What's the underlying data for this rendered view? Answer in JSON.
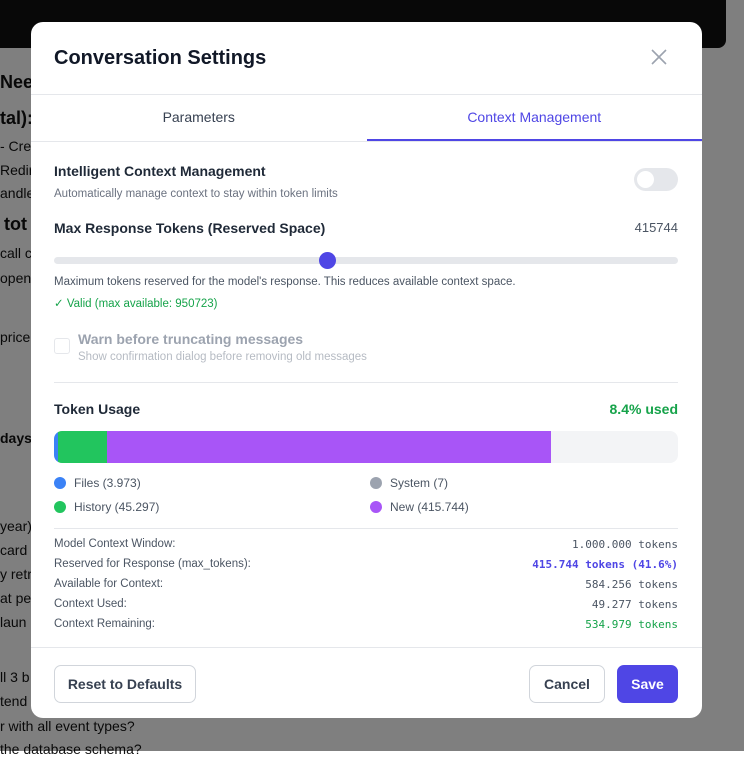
{
  "background": {
    "fragments": [
      "Nee",
      "tal):",
      "- Cre",
      "Redire",
      "andle",
      "tot",
      "call cr",
      "open",
      "price",
      "days",
      "year)",
      "card",
      "y retr",
      "at pe",
      "laun",
      "ll 3 b",
      "tend",
      "r with all event types?",
      "the database schema?"
    ]
  },
  "modal": {
    "title": "Conversation Settings",
    "tabs": [
      {
        "label": "Parameters",
        "active": false
      },
      {
        "label": "Context Management",
        "active": true
      }
    ],
    "intelligent": {
      "label": "Intelligent Context Management",
      "description": "Automatically manage context to stay within token limits",
      "enabled": false
    },
    "max_tokens": {
      "label": "Max Response Tokens (Reserved Space)",
      "value": "415744",
      "slider_value": 415744,
      "slider_max": 950723,
      "help": "Maximum tokens reserved for the model's response. This reduces available context space.",
      "valid": "✓ Valid (max available: 950723)"
    },
    "warn": {
      "label": "Warn before truncating messages",
      "description": "Show confirmation dialog before removing old messages",
      "checked": false,
      "disabled": true
    },
    "usage": {
      "title": "Token Usage",
      "percent_used": "8.4% used",
      "capacity": 584256,
      "segments": [
        {
          "key": "files",
          "value": 3973,
          "color": "#3b82f6"
        },
        {
          "key": "system",
          "value": 7,
          "color": "#9ca3af"
        },
        {
          "key": "history",
          "value": 45297,
          "color": "#22c55e"
        },
        {
          "key": "new",
          "value": 415744,
          "color": "#a855f7"
        }
      ],
      "legend": {
        "files": "Files (3.973)",
        "system": "System (7)",
        "history": "History (45.297)",
        "new": "New (415.744)"
      }
    },
    "stats": [
      {
        "label": "Model Context Window:",
        "value": "1.000.000 tokens"
      },
      {
        "label": "Reserved for Response (max_tokens):",
        "value": "415.744 tokens (41.6%)"
      },
      {
        "label": "Available for Context:",
        "value": "584.256 tokens"
      },
      {
        "label": "Context Used:",
        "value": "49.277 tokens"
      },
      {
        "label": "Context Remaining:",
        "value": "534.979 tokens"
      }
    ],
    "buttons": {
      "reset": "Reset to Defaults",
      "cancel": "Cancel",
      "save": "Save"
    },
    "colors": {
      "accent": "#4f46e5",
      "success": "#16a34a"
    }
  }
}
